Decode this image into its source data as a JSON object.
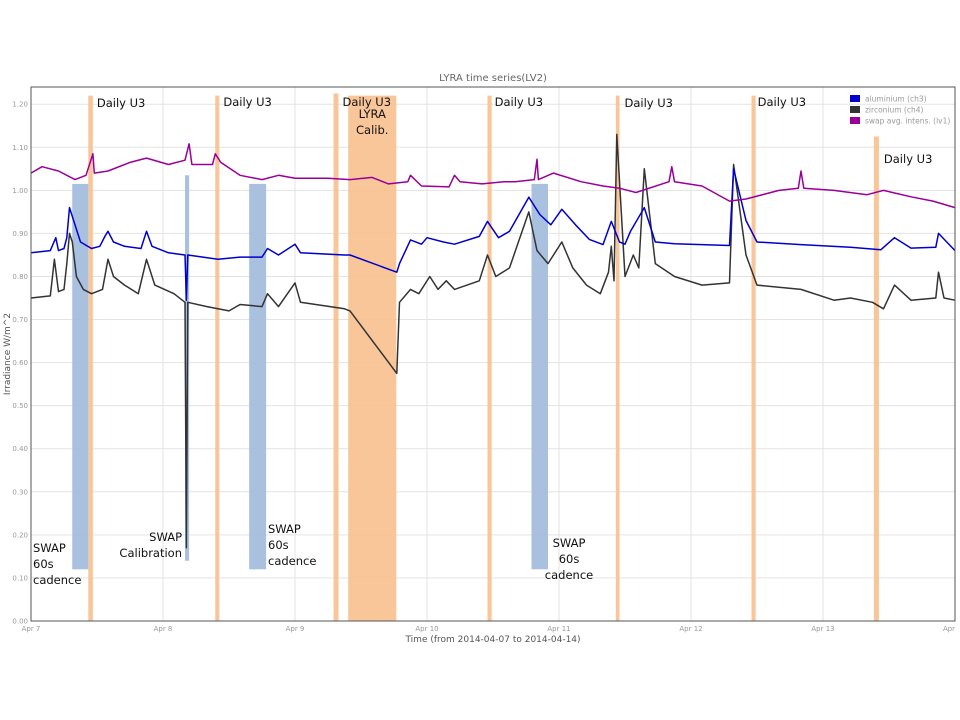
{
  "chart_data": {
    "type": "line",
    "title": "LYRA time series(LV2)",
    "xlabel": "Time (from 2014-04-07 to 2014-04-14)",
    "ylabel": "Irradiance W/m^2",
    "xlim": [
      "2014-04-07T00:00",
      "2014-04-14T00:00"
    ],
    "ylim": [
      0,
      1.24
    ],
    "grid": true,
    "legend_position": "top-right",
    "x_ticks": [
      {
        "t": "2014-04-07T00:00",
        "label": "Apr 7"
      },
      {
        "t": "2014-04-08T00:00",
        "label": "Apr 8"
      },
      {
        "t": "2014-04-09T00:00",
        "label": "Apr 9"
      },
      {
        "t": "2014-04-10T00:00",
        "label": "Apr 10"
      },
      {
        "t": "2014-04-11T00:00",
        "label": "Apr 11"
      },
      {
        "t": "2014-04-12T00:00",
        "label": "Apr 12"
      },
      {
        "t": "2014-04-13T00:00",
        "label": "Apr 13"
      },
      {
        "t": "2014-04-14T00:00",
        "label": "Apr"
      }
    ],
    "y_ticks": [
      "0.00",
      "0.10",
      "0.20",
      "0.30",
      "0.40",
      "0.50",
      "0.60",
      "0.70",
      "0.80",
      "0.90",
      "1.00",
      "1.10",
      "1.20"
    ],
    "series": [
      {
        "name": "aluminium (ch3)",
        "color": "#0000cc",
        "points": [
          [
            "2014-04-07T00:00",
            0.855
          ],
          [
            "2014-04-07T03:30",
            0.86
          ],
          [
            "2014-04-07T04:30",
            0.89
          ],
          [
            "2014-04-07T05:00",
            0.86
          ],
          [
            "2014-04-07T06:00",
            0.865
          ],
          [
            "2014-04-07T06:30",
            0.89
          ],
          [
            "2014-04-07T07:00",
            0.96
          ],
          [
            "2014-04-07T08:00",
            0.92
          ],
          [
            "2014-04-07T09:00",
            0.88
          ],
          [
            "2014-04-07T11:00",
            0.865
          ],
          [
            "2014-04-07T12:30",
            0.87
          ],
          [
            "2014-04-07T13:30",
            0.895
          ],
          [
            "2014-04-07T14:00",
            0.905
          ],
          [
            "2014-04-07T15:00",
            0.88
          ],
          [
            "2014-04-07T17:00",
            0.87
          ],
          [
            "2014-04-07T20:00",
            0.865
          ],
          [
            "2014-04-07T21:00",
            0.905
          ],
          [
            "2014-04-07T22:00",
            0.87
          ],
          [
            "2014-04-08T01:00",
            0.855
          ],
          [
            "2014-04-08T04:00",
            0.85
          ],
          [
            "2014-04-08T04:15",
            0.745
          ],
          [
            "2014-04-08T04:30",
            0.85
          ],
          [
            "2014-04-08T10:00",
            0.84
          ],
          [
            "2014-04-08T14:00",
            0.845
          ],
          [
            "2014-04-08T18:00",
            0.845
          ],
          [
            "2014-04-08T19:00",
            0.865
          ],
          [
            "2014-04-08T21:00",
            0.85
          ],
          [
            "2014-04-09T00:00",
            0.875
          ],
          [
            "2014-04-09T01:00",
            0.855
          ],
          [
            "2014-04-09T09:00",
            0.85
          ],
          [
            "2014-04-09T10:00",
            0.85
          ],
          [
            "2014-04-09T18:30",
            0.81
          ],
          [
            "2014-04-09T19:00",
            0.83
          ],
          [
            "2014-04-09T21:00",
            0.885
          ],
          [
            "2014-04-09T23:00",
            0.875
          ],
          [
            "2014-04-10T00:00",
            0.89
          ],
          [
            "2014-04-10T03:00",
            0.88
          ],
          [
            "2014-04-10T05:00",
            0.875
          ],
          [
            "2014-04-10T09:30",
            0.893
          ],
          [
            "2014-04-10T11:00",
            0.928
          ],
          [
            "2014-04-10T13:00",
            0.89
          ],
          [
            "2014-04-10T15:00",
            0.905
          ],
          [
            "2014-04-10T18:30",
            0.984
          ],
          [
            "2014-04-10T20:30",
            0.944
          ],
          [
            "2014-04-10T22:30",
            0.92
          ],
          [
            "2014-04-11T00:30",
            0.956
          ],
          [
            "2014-04-11T03:00",
            0.92
          ],
          [
            "2014-04-11T05:30",
            0.886
          ],
          [
            "2014-04-11T08:00",
            0.874
          ],
          [
            "2014-04-11T09:30",
            0.928
          ],
          [
            "2014-04-11T11:00",
            0.88
          ],
          [
            "2014-04-11T12:00",
            0.875
          ],
          [
            "2014-04-11T13:00",
            0.905
          ],
          [
            "2014-04-11T15:30",
            0.96
          ],
          [
            "2014-04-11T17:30",
            0.88
          ],
          [
            "2014-04-11T21:00",
            0.876
          ],
          [
            "2014-04-12T02:00",
            0.874
          ],
          [
            "2014-04-12T07:00",
            0.872
          ],
          [
            "2014-04-12T07:45",
            1.05
          ],
          [
            "2014-04-12T10:00",
            0.93
          ],
          [
            "2014-04-12T12:00",
            0.88
          ],
          [
            "2014-04-12T20:00",
            0.874
          ],
          [
            "2014-04-13T05:00",
            0.868
          ],
          [
            "2014-04-13T10:30",
            0.862
          ],
          [
            "2014-04-13T13:00",
            0.89
          ],
          [
            "2014-04-13T16:00",
            0.866
          ],
          [
            "2014-04-13T20:30",
            0.868
          ],
          [
            "2014-04-13T21:00",
            0.9
          ],
          [
            "2014-04-14T00:00",
            0.86
          ]
        ]
      },
      {
        "name": "zirconium (ch4)",
        "color": "#333333",
        "points": [
          [
            "2014-04-07T00:00",
            0.75
          ],
          [
            "2014-04-07T03:30",
            0.755
          ],
          [
            "2014-04-07T04:15",
            0.84
          ],
          [
            "2014-04-07T05:00",
            0.765
          ],
          [
            "2014-04-07T06:00",
            0.77
          ],
          [
            "2014-04-07T06:30",
            0.83
          ],
          [
            "2014-04-07T07:00",
            0.9
          ],
          [
            "2014-04-07T07:30",
            0.88
          ],
          [
            "2014-04-07T08:15",
            0.8
          ],
          [
            "2014-04-07T09:30",
            0.77
          ],
          [
            "2014-04-07T11:00",
            0.76
          ],
          [
            "2014-04-07T13:00",
            0.77
          ],
          [
            "2014-04-07T14:00",
            0.84
          ],
          [
            "2014-04-07T15:00",
            0.8
          ],
          [
            "2014-04-07T17:00",
            0.78
          ],
          [
            "2014-04-07T19:30",
            0.76
          ],
          [
            "2014-04-07T21:00",
            0.84
          ],
          [
            "2014-04-07T22:30",
            0.78
          ],
          [
            "2014-04-08T02:00",
            0.76
          ],
          [
            "2014-04-08T04:00",
            0.74
          ],
          [
            "2014-04-08T04:15",
            0.17
          ],
          [
            "2014-04-08T04:30",
            0.74
          ],
          [
            "2014-04-08T08:00",
            0.73
          ],
          [
            "2014-04-08T12:00",
            0.72
          ],
          [
            "2014-04-08T14:00",
            0.735
          ],
          [
            "2014-04-08T18:00",
            0.73
          ],
          [
            "2014-04-08T19:00",
            0.76
          ],
          [
            "2014-04-08T21:00",
            0.73
          ],
          [
            "2014-04-09T00:00",
            0.785
          ],
          [
            "2014-04-09T01:00",
            0.74
          ],
          [
            "2014-04-09T09:00",
            0.725
          ],
          [
            "2014-04-09T10:00",
            0.72
          ],
          [
            "2014-04-09T18:30",
            0.575
          ],
          [
            "2014-04-09T19:00",
            0.74
          ],
          [
            "2014-04-09T21:00",
            0.77
          ],
          [
            "2014-04-09T22:30",
            0.76
          ],
          [
            "2014-04-10T00:30",
            0.8
          ],
          [
            "2014-04-10T02:00",
            0.77
          ],
          [
            "2014-04-10T03:30",
            0.79
          ],
          [
            "2014-04-10T05:00",
            0.77
          ],
          [
            "2014-04-10T09:30",
            0.79
          ],
          [
            "2014-04-10T11:00",
            0.85
          ],
          [
            "2014-04-10T12:30",
            0.8
          ],
          [
            "2014-04-10T15:00",
            0.82
          ],
          [
            "2014-04-10T18:30",
            0.95
          ],
          [
            "2014-04-10T20:00",
            0.86
          ],
          [
            "2014-04-10T22:00",
            0.83
          ],
          [
            "2014-04-11T00:30",
            0.88
          ],
          [
            "2014-04-11T02:30",
            0.82
          ],
          [
            "2014-04-11T05:00",
            0.78
          ],
          [
            "2014-04-11T07:30",
            0.76
          ],
          [
            "2014-04-11T09:00",
            0.81
          ],
          [
            "2014-04-11T09:30",
            0.87
          ],
          [
            "2014-04-11T10:00",
            0.79
          ],
          [
            "2014-04-11T10:30",
            1.13
          ],
          [
            "2014-04-11T12:00",
            0.8
          ],
          [
            "2014-04-11T13:30",
            0.85
          ],
          [
            "2014-04-11T14:30",
            0.82
          ],
          [
            "2014-04-11T15:30",
            1.05
          ],
          [
            "2014-04-11T17:30",
            0.83
          ],
          [
            "2014-04-11T21:00",
            0.8
          ],
          [
            "2014-04-12T02:00",
            0.78
          ],
          [
            "2014-04-12T07:00",
            0.785
          ],
          [
            "2014-04-12T07:45",
            1.06
          ],
          [
            "2014-04-12T10:00",
            0.85
          ],
          [
            "2014-04-12T12:00",
            0.78
          ],
          [
            "2014-04-12T20:00",
            0.77
          ],
          [
            "2014-04-13T02:00",
            0.745
          ],
          [
            "2014-04-13T05:00",
            0.75
          ],
          [
            "2014-04-13T09:00",
            0.74
          ],
          [
            "2014-04-13T11:00",
            0.725
          ],
          [
            "2014-04-13T13:00",
            0.78
          ],
          [
            "2014-04-13T16:00",
            0.745
          ],
          [
            "2014-04-13T20:30",
            0.75
          ],
          [
            "2014-04-13T21:00",
            0.81
          ],
          [
            "2014-04-13T22:00",
            0.75
          ],
          [
            "2014-04-14T00:00",
            0.745
          ]
        ]
      },
      {
        "name": "swap avg. intens. (lv1)",
        "color": "#990099",
        "points": [
          [
            "2014-04-07T00:00",
            1.04
          ],
          [
            "2014-04-07T02:00",
            1.055
          ],
          [
            "2014-04-07T05:00",
            1.045
          ],
          [
            "2014-04-07T08:00",
            1.025
          ],
          [
            "2014-04-07T10:00",
            1.035
          ],
          [
            "2014-04-07T11:15",
            1.085
          ],
          [
            "2014-04-07T11:30",
            1.04
          ],
          [
            "2014-04-07T14:00",
            1.045
          ],
          [
            "2014-04-07T18:00",
            1.065
          ],
          [
            "2014-04-07T21:00",
            1.075
          ],
          [
            "2014-04-08T01:00",
            1.06
          ],
          [
            "2014-04-08T04:00",
            1.07
          ],
          [
            "2014-04-08T04:45",
            1.108
          ],
          [
            "2014-04-08T05:15",
            1.06
          ],
          [
            "2014-04-08T09:00",
            1.06
          ],
          [
            "2014-04-08T09:30",
            1.085
          ],
          [
            "2014-04-08T10:30",
            1.065
          ],
          [
            "2014-04-08T14:00",
            1.035
          ],
          [
            "2014-04-08T18:00",
            1.025
          ],
          [
            "2014-04-08T21:00",
            1.035
          ],
          [
            "2014-04-09T00:00",
            1.028
          ],
          [
            "2014-04-09T06:00",
            1.028
          ],
          [
            "2014-04-09T10:00",
            1.025
          ],
          [
            "2014-04-09T14:00",
            1.03
          ],
          [
            "2014-04-09T17:00",
            1.015
          ],
          [
            "2014-04-09T20:30",
            1.02
          ],
          [
            "2014-04-09T21:00",
            1.035
          ],
          [
            "2014-04-09T23:00",
            1.01
          ],
          [
            "2014-04-10T04:00",
            1.008
          ],
          [
            "2014-04-10T05:00",
            1.035
          ],
          [
            "2014-04-10T06:00",
            1.02
          ],
          [
            "2014-04-10T10:00",
            1.015
          ],
          [
            "2014-04-10T14:00",
            1.02
          ],
          [
            "2014-04-10T16:00",
            1.02
          ],
          [
            "2014-04-10T19:30",
            1.025
          ],
          [
            "2014-04-10T20:00",
            1.072
          ],
          [
            "2014-04-10T20:15",
            1.025
          ],
          [
            "2014-04-10T23:00",
            1.04
          ],
          [
            "2014-04-11T04:00",
            1.02
          ],
          [
            "2014-04-11T08:00",
            1.01
          ],
          [
            "2014-04-11T11:00",
            1.005
          ],
          [
            "2014-04-11T14:00",
            0.995
          ],
          [
            "2014-04-11T20:00",
            1.02
          ],
          [
            "2014-04-11T20:30",
            1.055
          ],
          [
            "2014-04-11T21:00",
            1.02
          ],
          [
            "2014-04-12T02:00",
            1.01
          ],
          [
            "2014-04-12T07:00",
            0.975
          ],
          [
            "2014-04-12T10:00",
            0.98
          ],
          [
            "2014-04-12T16:00",
            1.0
          ],
          [
            "2014-04-12T19:30",
            1.005
          ],
          [
            "2014-04-12T20:00",
            1.045
          ],
          [
            "2014-04-12T20:30",
            1.005
          ],
          [
            "2014-04-13T02:00",
            1.0
          ],
          [
            "2014-04-13T08:00",
            0.99
          ],
          [
            "2014-04-13T11:00",
            1.0
          ],
          [
            "2014-04-13T16:00",
            0.985
          ],
          [
            "2014-04-13T20:00",
            0.975
          ],
          [
            "2014-04-14T00:00",
            0.96
          ]
        ]
      }
    ],
    "annotations": [
      {
        "kind": "daily-u3",
        "start": "2014-04-07T10:25",
        "end": "2014-04-07T11:15",
        "y_top": 1.22,
        "color": "#f8c08e",
        "label": [
          "Daily U3"
        ]
      },
      {
        "kind": "daily-u3",
        "start": "2014-04-08T09:30",
        "end": "2014-04-08T10:15",
        "y_top": 1.22,
        "color": "#f8c08e",
        "label": [
          "Daily U3"
        ]
      },
      {
        "kind": "daily-u3",
        "start": "2014-04-09T07:00",
        "end": "2014-04-09T07:55",
        "y_top": 1.225,
        "color": "#f8c08e",
        "label": [
          "Daily U3"
        ]
      },
      {
        "kind": "lyra-calibration",
        "start": "2014-04-09T09:40",
        "end": "2014-04-09T18:25",
        "y_top": 1.22,
        "color": "#f8c08e",
        "label": [
          "LYRA",
          "Calib."
        ]
      },
      {
        "kind": "daily-u3",
        "start": "2014-04-10T11:00",
        "end": "2014-04-10T11:45",
        "y_top": 1.22,
        "color": "#f8c08e",
        "label": [
          "Daily U3"
        ]
      },
      {
        "kind": "daily-u3",
        "start": "2014-04-11T10:20",
        "end": "2014-04-11T11:00",
        "y_top": 1.22,
        "color": "#f8c08e",
        "label": [
          "Daily U3"
        ]
      },
      {
        "kind": "daily-u3",
        "start": "2014-04-12T11:00",
        "end": "2014-04-12T11:45",
        "y_top": 1.22,
        "color": "#f8c08e",
        "label": [
          "Daily U3"
        ]
      },
      {
        "kind": "daily-u3",
        "start": "2014-04-13T09:15",
        "end": "2014-04-13T10:10",
        "y_top": 1.125,
        "color": "#f8c08e",
        "label": [
          "Daily U3"
        ]
      },
      {
        "kind": "swap-60s",
        "start": "2014-04-07T07:30",
        "end": "2014-04-07T10:25",
        "y_bottom": 0.12,
        "y_top": 1.015,
        "color": "#a4bedd",
        "label": [
          "SWAP",
          "60s",
          "cadence"
        ]
      },
      {
        "kind": "swap-calibration",
        "start": "2014-04-08T04:00",
        "end": "2014-04-08T04:45",
        "y_bottom": 0.14,
        "y_top": 1.035,
        "color": "#a4bedd",
        "label": [
          "SWAP",
          "Calibration"
        ]
      },
      {
        "kind": "swap-60s",
        "start": "2014-04-08T15:40",
        "end": "2014-04-08T18:45",
        "y_bottom": 0.12,
        "y_top": 1.015,
        "color": "#a4bedd",
        "label": [
          "SWAP",
          "60s",
          "cadence"
        ]
      },
      {
        "kind": "swap-60s",
        "start": "2014-04-10T19:00",
        "end": "2014-04-10T22:00",
        "y_bottom": 0.12,
        "y_top": 1.015,
        "color": "#a4bedd",
        "label": [
          "SWAP",
          "60s",
          "cadence"
        ]
      }
    ]
  }
}
